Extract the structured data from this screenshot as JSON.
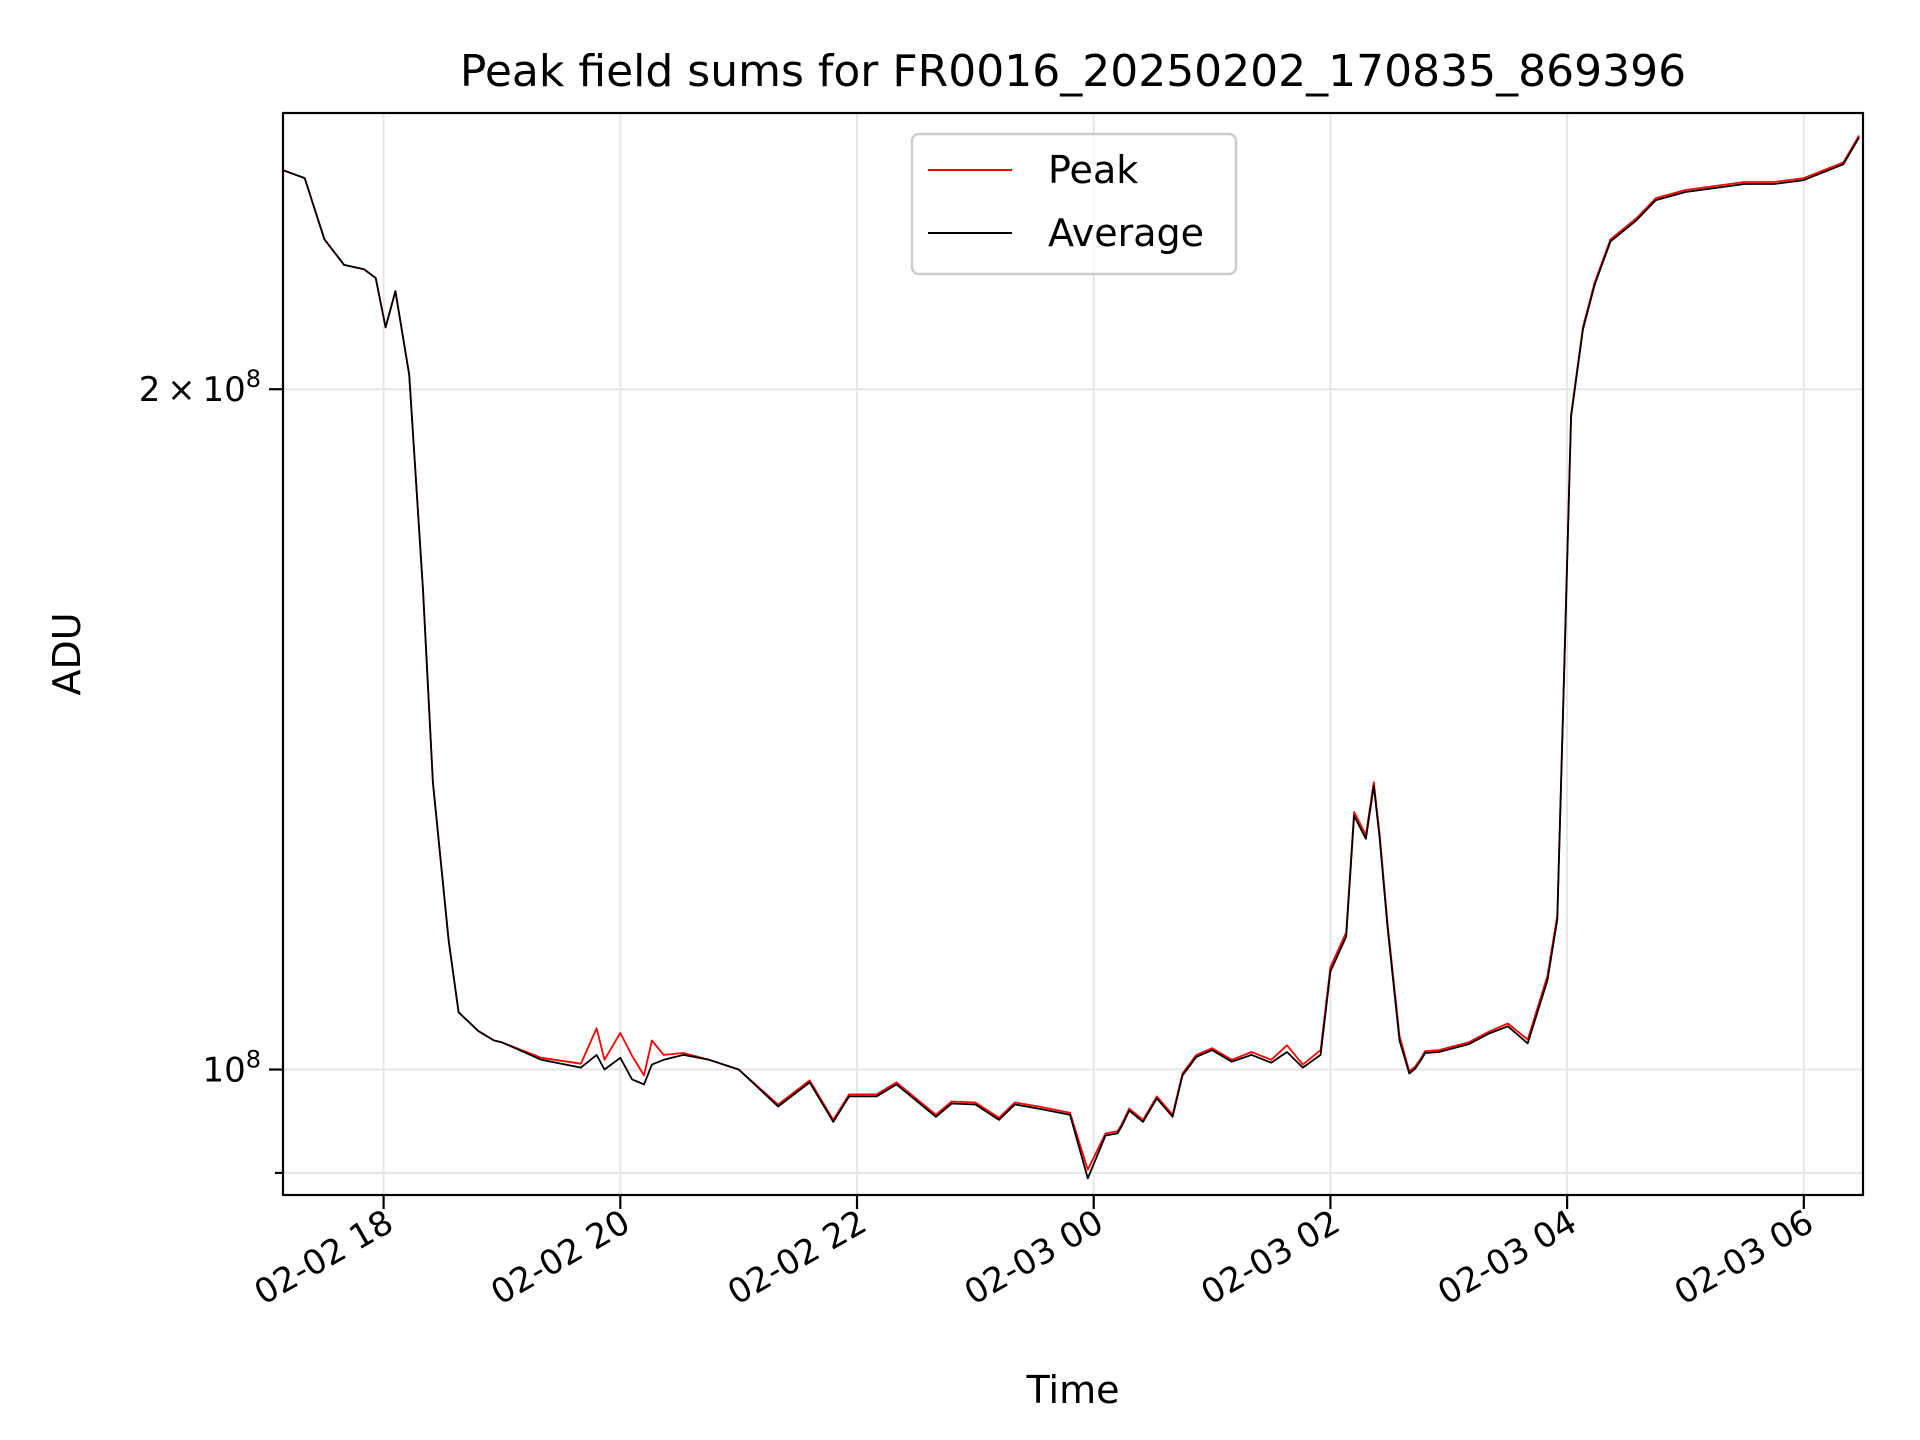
{
  "chart_data": {
    "type": "line",
    "title": "Peak field sums for FR0016_20250202_170835_869396",
    "xlabel": "Time",
    "ylabel": "ADU",
    "yscale": "log",
    "grid": true,
    "legend_position": "top-center",
    "xlim": [
      "2025-02-02 17:09",
      "2025-02-03 06:30"
    ],
    "ylim": [
      88000000,
      265000000
    ],
    "x_ticks": [
      {
        "value": "2025-02-02 18:00",
        "label": "02-02 18"
      },
      {
        "value": "2025-02-02 20:00",
        "label": "02-02 20"
      },
      {
        "value": "2025-02-02 22:00",
        "label": "02-02 22"
      },
      {
        "value": "2025-02-03 00:00",
        "label": "02-03 00"
      },
      {
        "value": "2025-02-03 02:00",
        "label": "02-03 02"
      },
      {
        "value": "2025-02-03 04:00",
        "label": "02-03 04"
      },
      {
        "value": "2025-02-03 06:00",
        "label": "02-03 06"
      }
    ],
    "y_major_ticks": [
      {
        "value": 100000000,
        "mantissa": "",
        "exponent": "8",
        "label": "10^8"
      },
      {
        "value": 200000000,
        "mantissa": "2",
        "exponent": "8",
        "label": "2 × 10^8"
      }
    ],
    "y_minor_ticks": [
      90000000
    ],
    "series": [
      {
        "name": "Peak",
        "color": "#ff0000",
        "x": [
          "2025-02-02 17:09",
          "2025-02-02 17:20",
          "2025-02-02 17:30",
          "2025-02-02 17:40",
          "2025-02-02 17:50",
          "2025-02-02 17:56",
          "2025-02-02 18:01",
          "2025-02-02 18:06",
          "2025-02-02 18:13",
          "2025-02-02 18:20",
          "2025-02-02 18:25",
          "2025-02-02 18:33",
          "2025-02-02 18:38",
          "2025-02-02 18:48",
          "2025-02-02 18:52",
          "2025-02-02 18:56",
          "2025-02-02 19:00",
          "2025-02-02 19:20",
          "2025-02-02 19:40",
          "2025-02-02 19:48",
          "2025-02-02 19:52",
          "2025-02-02 20:00",
          "2025-02-02 20:06",
          "2025-02-02 20:12",
          "2025-02-02 20:16",
          "2025-02-02 20:22",
          "2025-02-02 20:32",
          "2025-02-02 20:45",
          "2025-02-02 21:00",
          "2025-02-02 21:20",
          "2025-02-02 21:36",
          "2025-02-02 21:48",
          "2025-02-02 21:56",
          "2025-02-02 22:10",
          "2025-02-02 22:20",
          "2025-02-02 22:40",
          "2025-02-02 22:48",
          "2025-02-02 23:00",
          "2025-02-02 23:12",
          "2025-02-02 23:20",
          "2025-02-02 23:32",
          "2025-02-02 23:48",
          "2025-02-02 23:57",
          "2025-02-03 00:06",
          "2025-02-03 00:12",
          "2025-02-03 00:14",
          "2025-02-03 00:18",
          "2025-02-03 00:25",
          "2025-02-03 00:32",
          "2025-02-03 00:40",
          "2025-02-03 00:45",
          "2025-02-03 00:52",
          "2025-02-03 01:00",
          "2025-02-03 01:10",
          "2025-02-03 01:20",
          "2025-02-03 01:30",
          "2025-02-03 01:38",
          "2025-02-03 01:46",
          "2025-02-03 01:55",
          "2025-02-03 02:00",
          "2025-02-03 02:08",
          "2025-02-03 02:12",
          "2025-02-03 02:18",
          "2025-02-03 02:22",
          "2025-02-03 02:25",
          "2025-02-03 02:29",
          "2025-02-03 02:35",
          "2025-02-03 02:40",
          "2025-02-03 02:43",
          "2025-02-03 02:46",
          "2025-02-03 02:48",
          "2025-02-03 02:55",
          "2025-02-03 03:10",
          "2025-02-03 03:20",
          "2025-02-03 03:30",
          "2025-02-03 03:40",
          "2025-02-03 03:50",
          "2025-02-03 03:55",
          "2025-02-03 03:58",
          "2025-02-03 04:02",
          "2025-02-03 04:08",
          "2025-02-03 04:14",
          "2025-02-03 04:22",
          "2025-02-03 04:35",
          "2025-02-03 04:45",
          "2025-02-03 05:00",
          "2025-02-03 05:15",
          "2025-02-03 05:30",
          "2025-02-03 05:45",
          "2025-02-03 06:00",
          "2025-02-03 06:20",
          "2025-02-03 06:28"
        ],
        "y": [
          250000000,
          248000000,
          233000000,
          227000000,
          226000000,
          224000000,
          213000000,
          221000000,
          203000000,
          163000000,
          134000000,
          114000000,
          106000000,
          104000000,
          103500000,
          103000000,
          102800000,
          101200000,
          100600000,
          104300000,
          101000000,
          103800000,
          101400000,
          99400000,
          103000000,
          101500000,
          101700000,
          101000000,
          100000000,
          96500000,
          98900000,
          95000000,
          97500000,
          97500000,
          98700000,
          95500000,
          96800000,
          96700000,
          95200000,
          96700000,
          96300000,
          95700000,
          90300000,
          93700000,
          93900000,
          94500000,
          96100000,
          95000000,
          97300000,
          95500000,
          99600000,
          101500000,
          102200000,
          101000000,
          101800000,
          101000000,
          102500000,
          100500000,
          102000000,
          111000000,
          115000000,
          130000000,
          127000000,
          134000000,
          127000000,
          116000000,
          103500000,
          99800000,
          100300000,
          101200000,
          101900000,
          102000000,
          102800000,
          103900000,
          104800000,
          103100000,
          110000000,
          117000000,
          145000000,
          195000000,
          213000000,
          223000000,
          233000000,
          238000000,
          243000000,
          245000000,
          246000000,
          247000000,
          247000000,
          248000000,
          252000000,
          259000000
        ]
      },
      {
        "name": "Average",
        "color": "#000000",
        "x": [
          "2025-02-02 17:09",
          "2025-02-02 17:20",
          "2025-02-02 17:30",
          "2025-02-02 17:40",
          "2025-02-02 17:50",
          "2025-02-02 17:56",
          "2025-02-02 18:01",
          "2025-02-02 18:06",
          "2025-02-02 18:13",
          "2025-02-02 18:20",
          "2025-02-02 18:25",
          "2025-02-02 18:33",
          "2025-02-02 18:38",
          "2025-02-02 18:48",
          "2025-02-02 18:52",
          "2025-02-02 18:56",
          "2025-02-02 19:00",
          "2025-02-02 19:20",
          "2025-02-02 19:40",
          "2025-02-02 19:48",
          "2025-02-02 19:52",
          "2025-02-02 20:00",
          "2025-02-02 20:06",
          "2025-02-02 20:12",
          "2025-02-02 20:16",
          "2025-02-02 20:22",
          "2025-02-02 20:32",
          "2025-02-02 20:45",
          "2025-02-02 21:00",
          "2025-02-02 21:20",
          "2025-02-02 21:36",
          "2025-02-02 21:48",
          "2025-02-02 21:56",
          "2025-02-02 22:10",
          "2025-02-02 22:20",
          "2025-02-02 22:40",
          "2025-02-02 22:48",
          "2025-02-02 23:00",
          "2025-02-02 23:12",
          "2025-02-02 23:20",
          "2025-02-02 23:32",
          "2025-02-02 23:48",
          "2025-02-02 23:57",
          "2025-02-03 00:06",
          "2025-02-03 00:12",
          "2025-02-03 00:14",
          "2025-02-03 00:18",
          "2025-02-03 00:25",
          "2025-02-03 00:32",
          "2025-02-03 00:40",
          "2025-02-03 00:45",
          "2025-02-03 00:52",
          "2025-02-03 01:00",
          "2025-02-03 01:10",
          "2025-02-03 01:20",
          "2025-02-03 01:30",
          "2025-02-03 01:38",
          "2025-02-03 01:46",
          "2025-02-03 01:55",
          "2025-02-03 02:00",
          "2025-02-03 02:08",
          "2025-02-03 02:12",
          "2025-02-03 02:18",
          "2025-02-03 02:22",
          "2025-02-03 02:25",
          "2025-02-03 02:29",
          "2025-02-03 02:35",
          "2025-02-03 02:40",
          "2025-02-03 02:43",
          "2025-02-03 02:46",
          "2025-02-03 02:48",
          "2025-02-03 02:55",
          "2025-02-03 03:10",
          "2025-02-03 03:20",
          "2025-02-03 03:30",
          "2025-02-03 03:40",
          "2025-02-03 03:50",
          "2025-02-03 03:55",
          "2025-02-03 03:58",
          "2025-02-03 04:02",
          "2025-02-03 04:08",
          "2025-02-03 04:14",
          "2025-02-03 04:22",
          "2025-02-03 04:35",
          "2025-02-03 04:45",
          "2025-02-03 05:00",
          "2025-02-03 05:15",
          "2025-02-03 05:30",
          "2025-02-03 05:45",
          "2025-02-03 06:00",
          "2025-02-03 06:20",
          "2025-02-03 06:28"
        ],
        "y": [
          250000000,
          248000000,
          233000000,
          227000000,
          226000000,
          224000000,
          213000000,
          221000000,
          203000000,
          163000000,
          134000000,
          114000000,
          106000000,
          104000000,
          103500000,
          103000000,
          102800000,
          101000000,
          100200000,
          101500000,
          100000000,
          101200000,
          99000000,
          98500000,
          100500000,
          101000000,
          101500000,
          101000000,
          100000000,
          96300000,
          98700000,
          94800000,
          97300000,
          97300000,
          98500000,
          95300000,
          96600000,
          96500000,
          95000000,
          96500000,
          96100000,
          95500000,
          89500000,
          93500000,
          93700000,
          94300000,
          95900000,
          94800000,
          97100000,
          95300000,
          99400000,
          101300000,
          102000000,
          100800000,
          101500000,
          100700000,
          101800000,
          100200000,
          101500000,
          110500000,
          114500000,
          129500000,
          126500000,
          133500000,
          126500000,
          115500000,
          103000000,
          99600000,
          100100000,
          101000000,
          101700000,
          101800000,
          102600000,
          103700000,
          104500000,
          102700000,
          109500000,
          116500000,
          144500000,
          194500000,
          212500000,
          222500000,
          232500000,
          237500000,
          242500000,
          244500000,
          245500000,
          246500000,
          246500000,
          247500000,
          251500000,
          258500000
        ]
      }
    ]
  }
}
